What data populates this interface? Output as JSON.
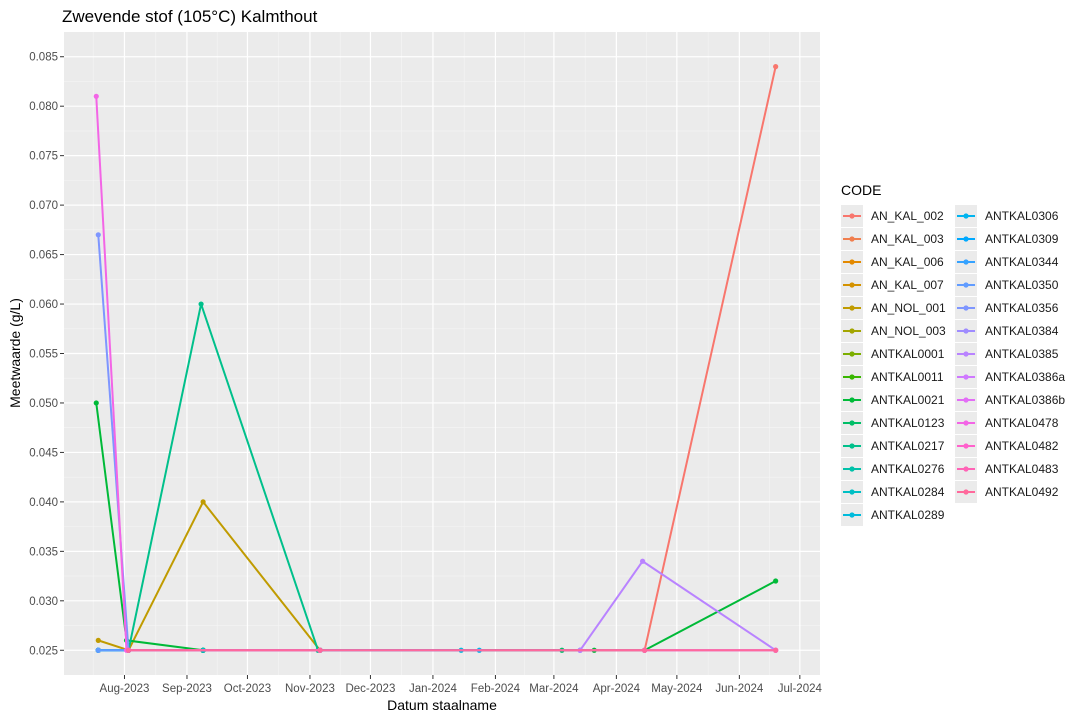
{
  "chart_data": {
    "type": "line",
    "title": "Zwevende stof (105°C) Kalmthout",
    "xlabel": "Datum staalname",
    "ylabel": "Meetwaarde (g/L)",
    "x_type": "date",
    "xlim": [
      "2023-07-02",
      "2024-07-11"
    ],
    "ylim": [
      0.0225,
      0.0875
    ],
    "x_ticks": [
      {
        "date": "2023-08-01",
        "label": "Aug-2023"
      },
      {
        "date": "2023-09-01",
        "label": "Sep-2023"
      },
      {
        "date": "2023-10-01",
        "label": "Oct-2023"
      },
      {
        "date": "2023-11-01",
        "label": "Nov-2023"
      },
      {
        "date": "2023-12-01",
        "label": "Dec-2023"
      },
      {
        "date": "2024-01-01",
        "label": "Jan-2024"
      },
      {
        "date": "2024-02-01",
        "label": "Feb-2024"
      },
      {
        "date": "2024-03-01",
        "label": "Mar-2024"
      },
      {
        "date": "2024-04-01",
        "label": "Apr-2024"
      },
      {
        "date": "2024-05-01",
        "label": "May-2024"
      },
      {
        "date": "2024-06-01",
        "label": "Jun-2024"
      },
      {
        "date": "2024-07-01",
        "label": "Jul-2024"
      }
    ],
    "y_ticks": [
      0.025,
      0.03,
      0.035,
      0.04,
      0.045,
      0.05,
      0.055,
      0.06,
      0.065,
      0.07,
      0.075,
      0.08,
      0.085
    ],
    "y_tick_labels": [
      "0.025",
      "0.030",
      "0.035",
      "0.040",
      "0.045",
      "0.050",
      "0.055",
      "0.060",
      "0.065",
      "0.070",
      "0.075",
      "0.080",
      "0.085"
    ],
    "grid": true,
    "legend_title": "CODE",
    "legend_position": "right",
    "series": [
      {
        "name": "AN_KAL_002",
        "color": "#F8766D",
        "points": [
          [
            "2023-07-19",
            0.025
          ],
          [
            "2023-08-03",
            0.025
          ],
          [
            "2023-09-09",
            0.025
          ],
          [
            "2023-11-06",
            0.025
          ],
          [
            "2024-04-15",
            0.025
          ],
          [
            "2024-06-19",
            0.084
          ]
        ]
      },
      {
        "name": "AN_KAL_003",
        "color": "#F07E4E",
        "points": [
          [
            "2023-07-19",
            0.025
          ],
          [
            "2023-08-03",
            0.025
          ],
          [
            "2023-09-09",
            0.025
          ],
          [
            "2023-11-06",
            0.025
          ],
          [
            "2024-04-15",
            0.025
          ],
          [
            "2024-06-19",
            0.025
          ]
        ]
      },
      {
        "name": "AN_KAL_006",
        "color": "#E38900",
        "points": [
          [
            "2023-07-19",
            0.025
          ],
          [
            "2023-08-03",
            0.025
          ],
          [
            "2023-09-09",
            0.025
          ],
          [
            "2023-11-06",
            0.025
          ]
        ]
      },
      {
        "name": "AN_KAL_007",
        "color": "#D49200",
        "points": [
          [
            "2023-07-19",
            0.025
          ],
          [
            "2023-08-03",
            0.025
          ],
          [
            "2023-09-09",
            0.025
          ],
          [
            "2023-11-06",
            0.025
          ]
        ]
      },
      {
        "name": "AN_NOL_001",
        "color": "#C09B00",
        "points": [
          [
            "2023-07-19",
            0.026
          ],
          [
            "2023-08-03",
            0.025
          ],
          [
            "2023-09-09",
            0.04
          ],
          [
            "2023-11-06",
            0.025
          ]
        ]
      },
      {
        "name": "AN_NOL_003",
        "color": "#A3A500",
        "points": [
          [
            "2023-07-19",
            0.025
          ],
          [
            "2023-08-03",
            0.025
          ],
          [
            "2023-09-09",
            0.025
          ],
          [
            "2023-11-06",
            0.025
          ]
        ]
      },
      {
        "name": "ANTKAL0001",
        "color": "#7CAE00",
        "points": [
          [
            "2023-07-19",
            0.025
          ],
          [
            "2023-08-03",
            0.025
          ],
          [
            "2023-09-09",
            0.025
          ],
          [
            "2023-11-06",
            0.025
          ]
        ]
      },
      {
        "name": "ANTKAL0011",
        "color": "#39B600",
        "points": [
          [
            "2023-07-19",
            0.025
          ],
          [
            "2023-08-03",
            0.025
          ],
          [
            "2023-09-09",
            0.025
          ],
          [
            "2023-11-06",
            0.025
          ]
        ]
      },
      {
        "name": "ANTKAL0021",
        "color": "#00BA38",
        "points": [
          [
            "2023-07-18",
            0.05
          ],
          [
            "2023-08-02",
            0.026
          ],
          [
            "2023-09-09",
            0.025
          ],
          [
            "2024-03-21",
            0.025
          ],
          [
            "2024-04-15",
            0.025
          ],
          [
            "2024-06-19",
            0.032
          ]
        ]
      },
      {
        "name": "ANTKAL0123",
        "color": "#00BE67",
        "points": [
          [
            "2023-07-19",
            0.025
          ],
          [
            "2023-08-03",
            0.025
          ],
          [
            "2023-09-09",
            0.025
          ],
          [
            "2023-11-06",
            0.025
          ],
          [
            "2024-03-05",
            0.025
          ]
        ]
      },
      {
        "name": "ANTKAL0217",
        "color": "#00C08B",
        "points": [
          [
            "2023-07-19",
            0.025
          ],
          [
            "2023-08-03",
            0.025
          ],
          [
            "2023-09-08",
            0.06
          ],
          [
            "2023-11-05",
            0.025
          ]
        ]
      },
      {
        "name": "ANTKAL0276",
        "color": "#00C1A9",
        "points": [
          [
            "2023-07-19",
            0.025
          ],
          [
            "2023-08-03",
            0.025
          ],
          [
            "2023-09-09",
            0.025
          ],
          [
            "2023-11-06",
            0.025
          ]
        ]
      },
      {
        "name": "ANTKAL0284",
        "color": "#00BFC4",
        "points": [
          [
            "2023-07-19",
            0.025
          ],
          [
            "2023-08-03",
            0.025
          ],
          [
            "2023-09-09",
            0.025
          ],
          [
            "2023-11-06",
            0.025
          ]
        ]
      },
      {
        "name": "ANTKAL0289",
        "color": "#00BBDC",
        "points": [
          [
            "2023-07-19",
            0.025
          ],
          [
            "2023-08-03",
            0.025
          ],
          [
            "2023-11-06",
            0.025
          ],
          [
            "2024-01-15",
            0.025
          ]
        ]
      },
      {
        "name": "ANTKAL0306",
        "color": "#00B4EF",
        "points": [
          [
            "2023-07-19",
            0.025
          ],
          [
            "2023-08-03",
            0.025
          ],
          [
            "2023-11-06",
            0.025
          ],
          [
            "2024-01-24",
            0.025
          ]
        ]
      },
      {
        "name": "ANTKAL0309",
        "color": "#00A9FF",
        "points": [
          [
            "2023-07-19",
            0.025
          ],
          [
            "2023-08-03",
            0.025
          ],
          [
            "2023-11-06",
            0.025
          ]
        ]
      },
      {
        "name": "ANTKAL0344",
        "color": "#35A2FF",
        "points": [
          [
            "2023-07-19",
            0.025
          ],
          [
            "2023-08-03",
            0.025
          ],
          [
            "2023-11-06",
            0.025
          ],
          [
            "2024-03-14",
            0.025
          ]
        ]
      },
      {
        "name": "ANTKAL0350",
        "color": "#619CFF",
        "points": [
          [
            "2023-07-19",
            0.025
          ],
          [
            "2023-08-03",
            0.025
          ],
          [
            "2023-11-06",
            0.025
          ]
        ]
      },
      {
        "name": "ANTKAL0356",
        "color": "#7E96FF",
        "points": [
          [
            "2023-07-19",
            0.067
          ],
          [
            "2023-08-03",
            0.025
          ]
        ]
      },
      {
        "name": "ANTKAL0384",
        "color": "#9F8CFF",
        "points": [
          [
            "2024-03-14",
            0.025
          ],
          [
            "2024-04-15",
            0.025
          ]
        ]
      },
      {
        "name": "ANTKAL0385",
        "color": "#B983FF",
        "points": [
          [
            "2024-03-14",
            0.025
          ],
          [
            "2024-04-14",
            0.034
          ],
          [
            "2024-06-19",
            0.025
          ]
        ]
      },
      {
        "name": "ANTKAL0386a",
        "color": "#CF78FF",
        "points": [
          [
            "2024-04-15",
            0.025
          ],
          [
            "2024-06-19",
            0.025
          ]
        ]
      },
      {
        "name": "ANTKAL0386b",
        "color": "#E36EF6",
        "points": [
          [
            "2024-04-15",
            0.025
          ],
          [
            "2024-06-19",
            0.025
          ]
        ]
      },
      {
        "name": "ANTKAL0478",
        "color": "#F365E6",
        "points": [
          [
            "2023-07-18",
            0.081
          ],
          [
            "2023-08-02",
            0.025
          ]
        ]
      },
      {
        "name": "ANTKAL0482",
        "color": "#FF61CC",
        "points": [
          [
            "2023-08-03",
            0.025
          ],
          [
            "2023-11-06",
            0.025
          ]
        ]
      },
      {
        "name": "ANTKAL0483",
        "color": "#FF63B6",
        "points": [
          [
            "2023-08-03",
            0.025
          ],
          [
            "2023-11-06",
            0.025
          ],
          [
            "2024-04-15",
            0.025
          ]
        ]
      },
      {
        "name": "ANTKAL0492",
        "color": "#FF699C",
        "points": [
          [
            "2023-08-03",
            0.025
          ],
          [
            "2023-11-06",
            0.025
          ],
          [
            "2024-04-15",
            0.025
          ],
          [
            "2024-06-19",
            0.025
          ]
        ]
      }
    ]
  }
}
